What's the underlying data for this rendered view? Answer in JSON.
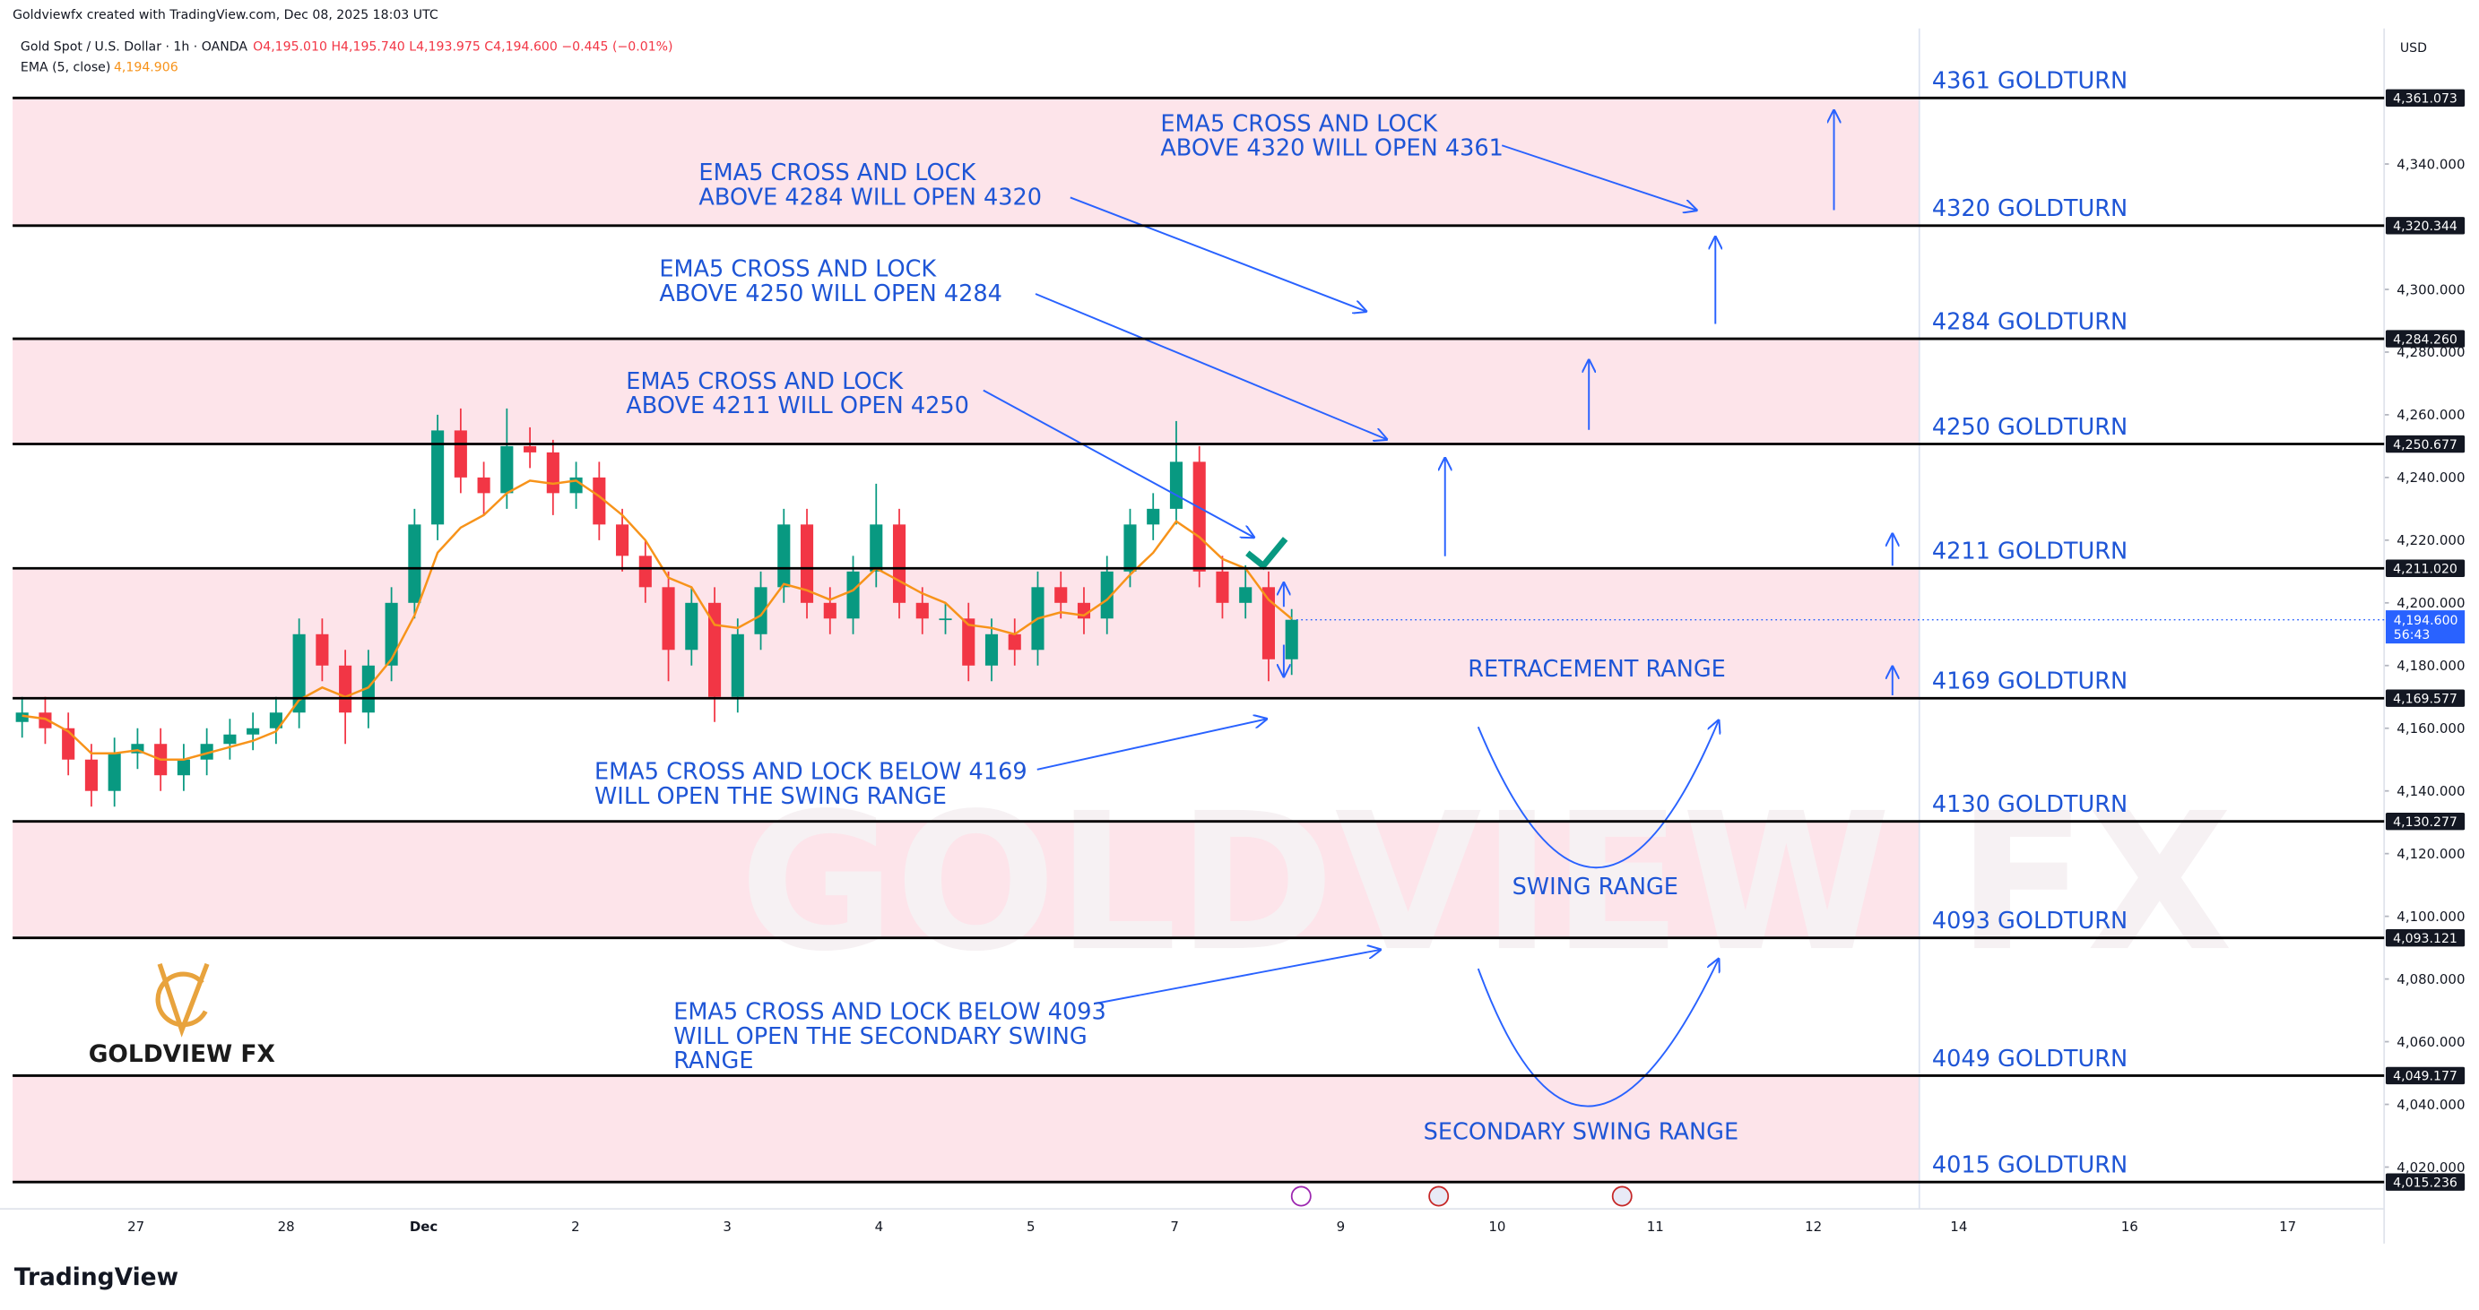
{
  "header": {
    "credit": "Goldviewfx created with TradingView.com, Dec 08, 2025 18:03 UTC",
    "symbol": "Gold Spot / U.S. Dollar · 1h · OANDA",
    "ohlc": "O4,195.010 H4,195.740 L4,193.975 C4,194.600 −0.445 (−0.01%)",
    "ema_label": "EMA (5, close)",
    "ema_value": "4,194.906",
    "currency": "USD",
    "logo": "GOLDVIEW FX",
    "watermark": "GOLDVIEW FX",
    "footer": "TradingView"
  },
  "chart_data": {
    "type": "candlestick",
    "ylim": [
      4006.67,
      4383.25
    ],
    "yticks": [
      {
        "value": 4020,
        "label": "4,020.000"
      },
      {
        "value": 4040,
        "label": "4,040.000"
      },
      {
        "value": 4060,
        "label": "4,060.000"
      },
      {
        "value": 4080,
        "label": "4,080.000"
      },
      {
        "value": 4100,
        "label": "4,100.000"
      },
      {
        "value": 4120,
        "label": "4,120.000"
      },
      {
        "value": 4140,
        "label": "4,140.000"
      },
      {
        "value": 4160,
        "label": "4,160.000"
      },
      {
        "value": 4180,
        "label": "4,180.000"
      },
      {
        "value": 4200,
        "label": "4,200.000"
      },
      {
        "value": 4220,
        "label": "4,220.000"
      },
      {
        "value": 4240,
        "label": "4,240.000"
      },
      {
        "value": 4260,
        "label": "4,260.000"
      },
      {
        "value": 4280,
        "label": "4,280.000"
      },
      {
        "value": 4300,
        "label": "4,300.000"
      },
      {
        "value": 4340,
        "label": "4,340.000"
      }
    ],
    "x_labels": [
      "27",
      "28",
      "Dec",
      "2",
      "3",
      "4",
      "5",
      "7",
      "9",
      "10",
      "11",
      "12",
      "14",
      "16",
      "17"
    ],
    "up_color": "#089981",
    "down_color": "#f23645",
    "candles": [
      [
        4162,
        4170,
        4157,
        4165
      ],
      [
        4165,
        4170,
        4155,
        4160
      ],
      [
        4160,
        4165,
        4145,
        4150
      ],
      [
        4150,
        4155,
        4135,
        4140
      ],
      [
        4140,
        4157,
        4135,
        4152
      ],
      [
        4152,
        4160,
        4147,
        4155
      ],
      [
        4155,
        4160,
        4140,
        4145
      ],
      [
        4145,
        4155,
        4140,
        4150
      ],
      [
        4150,
        4160,
        4145,
        4155
      ],
      [
        4155,
        4163,
        4150,
        4158
      ],
      [
        4158,
        4165,
        4153,
        4160
      ],
      [
        4160,
        4170,
        4155,
        4165
      ],
      [
        4165,
        4195,
        4160,
        4190
      ],
      [
        4190,
        4195,
        4175,
        4180
      ],
      [
        4180,
        4185,
        4155,
        4165
      ],
      [
        4165,
        4185,
        4160,
        4180
      ],
      [
        4180,
        4205,
        4175,
        4200
      ],
      [
        4200,
        4230,
        4195,
        4225
      ],
      [
        4225,
        4260,
        4220,
        4255
      ],
      [
        4255,
        4262,
        4235,
        4240
      ],
      [
        4240,
        4245,
        4228,
        4235
      ],
      [
        4235,
        4262,
        4230,
        4250
      ],
      [
        4250,
        4256,
        4243,
        4248
      ],
      [
        4248,
        4252,
        4228,
        4235
      ],
      [
        4235,
        4245,
        4230,
        4240
      ],
      [
        4240,
        4245,
        4220,
        4225
      ],
      [
        4225,
        4230,
        4210,
        4215
      ],
      [
        4215,
        4220,
        4200,
        4205
      ],
      [
        4205,
        4210,
        4175,
        4185
      ],
      [
        4185,
        4205,
        4180,
        4200
      ],
      [
        4200,
        4205,
        4162,
        4170
      ],
      [
        4170,
        4195,
        4165,
        4190
      ],
      [
        4190,
        4210,
        4185,
        4205
      ],
      [
        4205,
        4230,
        4200,
        4225
      ],
      [
        4225,
        4230,
        4195,
        4200
      ],
      [
        4200,
        4205,
        4190,
        4195
      ],
      [
        4195,
        4215,
        4190,
        4210
      ],
      [
        4210,
        4238,
        4205,
        4225
      ],
      [
        4225,
        4230,
        4195,
        4200
      ],
      [
        4200,
        4205,
        4190,
        4195
      ],
      [
        4195,
        4200,
        4190,
        4195
      ],
      [
        4195,
        4200,
        4175,
        4180
      ],
      [
        4180,
        4195,
        4175,
        4190
      ],
      [
        4190,
        4195,
        4180,
        4185
      ],
      [
        4185,
        4210,
        4180,
        4205
      ],
      [
        4205,
        4210,
        4195,
        4200
      ],
      [
        4200,
        4205,
        4190,
        4195
      ],
      [
        4195,
        4215,
        4190,
        4210
      ],
      [
        4210,
        4230,
        4205,
        4225
      ],
      [
        4225,
        4235,
        4220,
        4230
      ],
      [
        4230,
        4258,
        4225,
        4245
      ],
      [
        4245,
        4250,
        4205,
        4210
      ],
      [
        4210,
        4215,
        4195,
        4200
      ],
      [
        4200,
        4212,
        4195,
        4205
      ],
      [
        4205,
        4210,
        4175,
        4182
      ],
      [
        4182,
        4198,
        4177,
        4194.6
      ]
    ],
    "ema": {
      "name": "EMA (5, close)",
      "color": "#f7931a",
      "values": [
        4164,
        4163,
        4159,
        4152,
        4152,
        4153,
        4150,
        4150,
        4152,
        4154,
        4156,
        4159,
        4169,
        4173,
        4170,
        4173,
        4182,
        4196,
        4216,
        4224,
        4228,
        4235,
        4239,
        4238,
        4239,
        4234,
        4228,
        4220,
        4208,
        4205,
        4193,
        4192,
        4196,
        4206,
        4204,
        4201,
        4204,
        4211,
        4207,
        4203,
        4200,
        4193,
        4192,
        4190,
        4195,
        4197,
        4196,
        4201,
        4209,
        4216,
        4226,
        4221,
        4214,
        4211,
        4201,
        4194.906
      ]
    },
    "last_price": {
      "value": 4194.6,
      "label": "4,194.600"
    },
    "countdown": "56:43",
    "zone_color": "#fde4ea",
    "levels": [
      {
        "value": 4361.073,
        "label": "4,361.073",
        "name": "4361 GOLDTURN"
      },
      {
        "value": 4320.344,
        "label": "4,320.344",
        "name": "4320 GOLDTURN"
      },
      {
        "value": 4284.26,
        "label": "4,284.260",
        "name": "4284 GOLDTURN"
      },
      {
        "value": 4250.677,
        "label": "4,250.677",
        "name": "4250 GOLDTURN"
      },
      {
        "value": 4211.02,
        "label": "4,211.020",
        "name": "4211 GOLDTURN"
      },
      {
        "value": 4169.577,
        "label": "4,169.577",
        "name": "4169 GOLDTURN"
      },
      {
        "value": 4130.277,
        "label": "4,130.277",
        "name": "4130 GOLDTURN"
      },
      {
        "value": 4093.121,
        "label": "4,093.121",
        "name": "4093 GOLDTURN"
      },
      {
        "value": 4049.177,
        "label": "4,049.177",
        "name": "4049 GOLDTURN"
      },
      {
        "value": 4015.236,
        "label": "4,015.236",
        "name": "4015 GOLDTURN"
      }
    ],
    "annotations": [
      [
        "EMA5 CROSS AND LOCK",
        "ABOVE 4320 WILL OPEN 4361"
      ],
      [
        "EMA5 CROSS AND LOCK",
        "ABOVE 4284 WILL OPEN 4320"
      ],
      [
        "EMA5 CROSS AND LOCK",
        "ABOVE 4250 WILL OPEN 4284"
      ],
      [
        "EMA5 CROSS AND LOCK",
        "ABOVE 4211 WILL OPEN 4250"
      ],
      [
        "EMA5 CROSS AND LOCK BELOW 4169",
        "WILL OPEN THE SWING RANGE"
      ],
      [
        "EMA5 CROSS AND LOCK BELOW 4093",
        "WILL OPEN THE SECONDARY SWING",
        "RANGE"
      ]
    ],
    "ranges": [
      "RETRACEMENT RANGE",
      "SWING RANGE",
      "SECONDARY SWING RANGE"
    ]
  }
}
